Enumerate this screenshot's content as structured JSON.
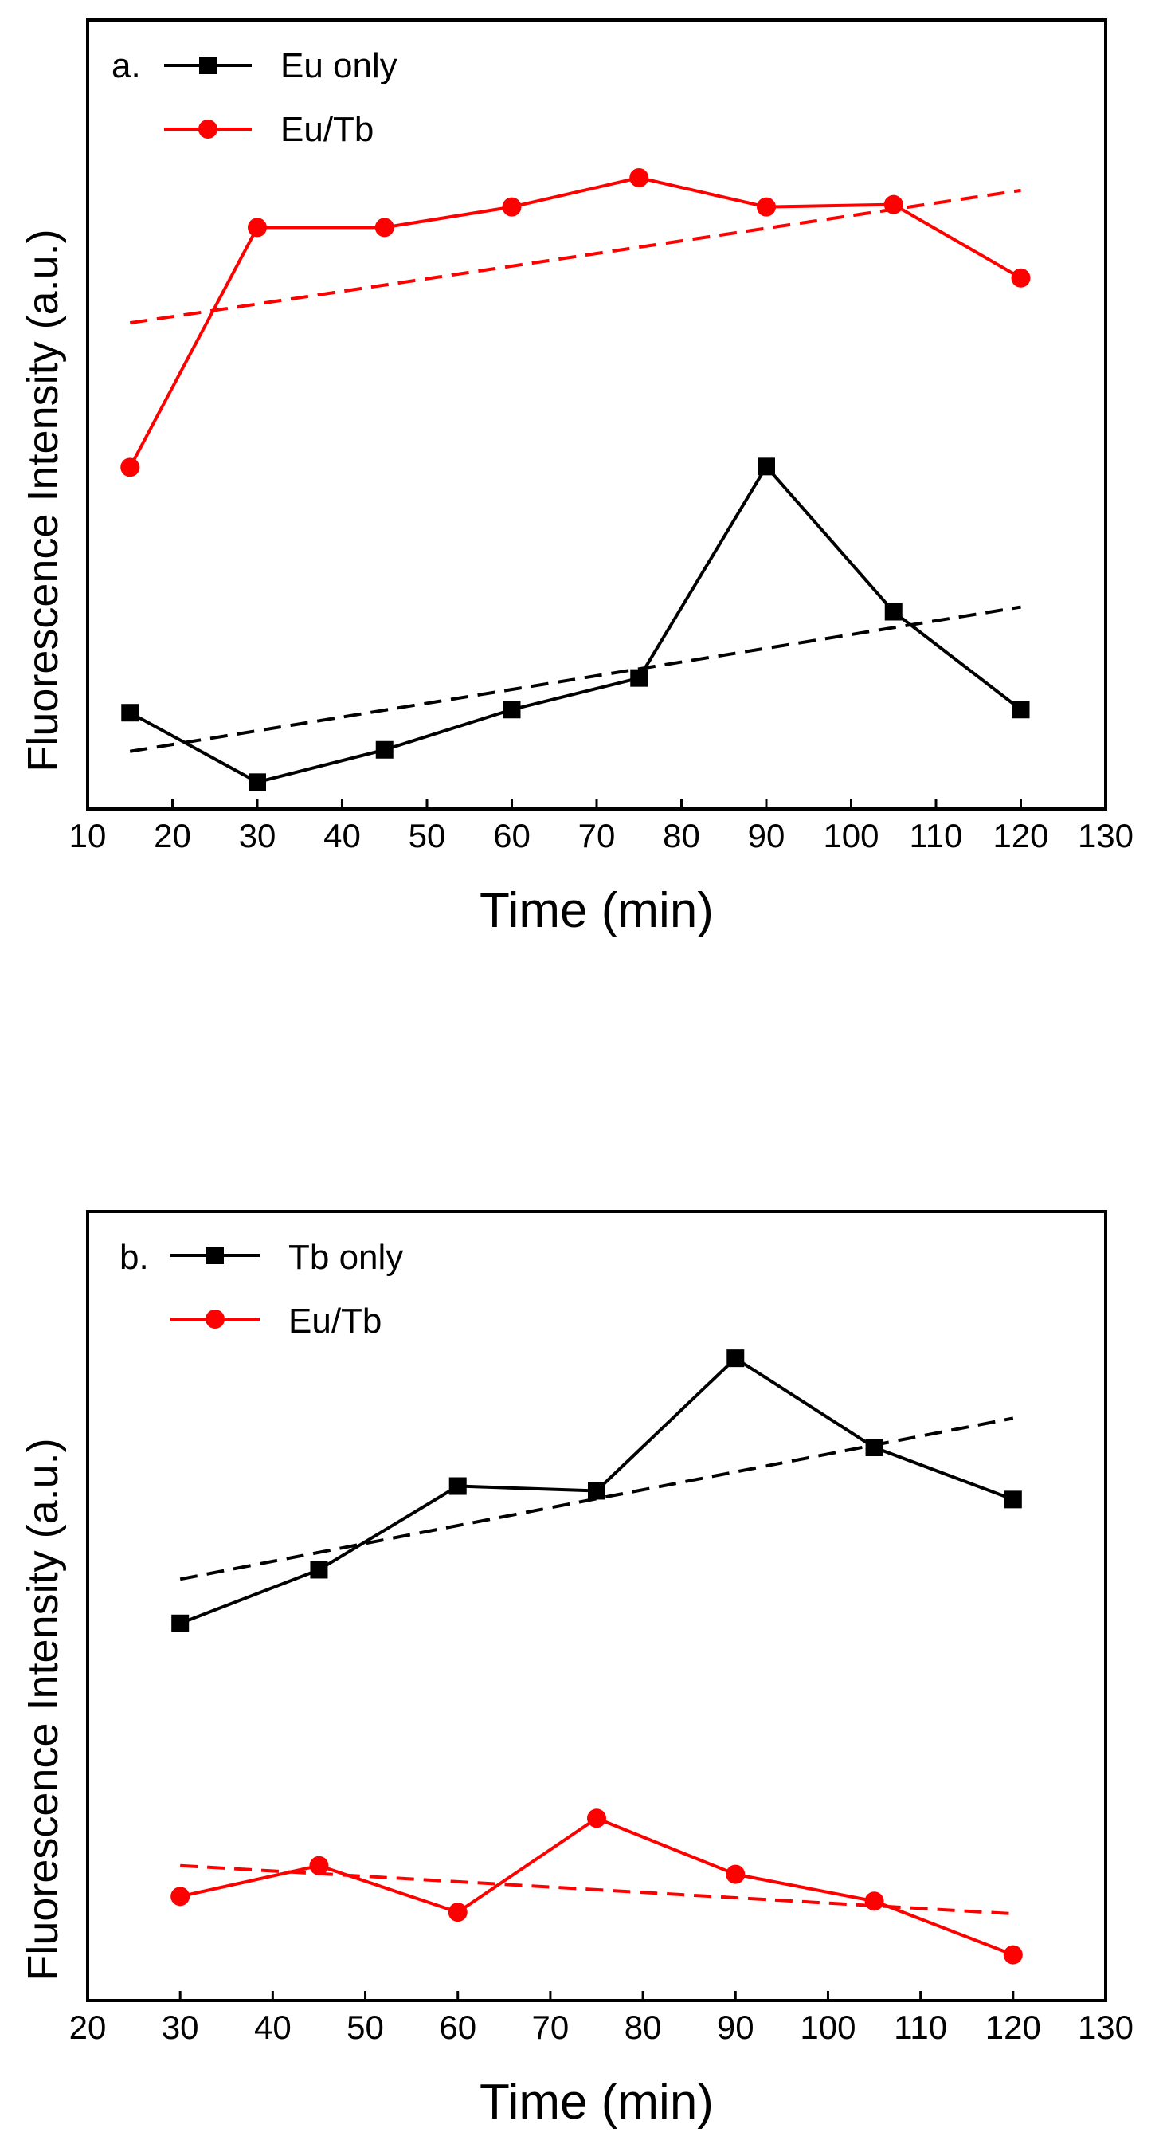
{
  "chart_data": [
    {
      "type": "line",
      "panel_label": "a.",
      "xlabel": "Time (min)",
      "ylabel": "Fluorescence Intensity (a.u.)",
      "xlim": [
        10,
        130
      ],
      "ylim": [
        0,
        100
      ],
      "x_ticks": [
        10,
        20,
        30,
        40,
        50,
        60,
        70,
        80,
        90,
        100,
        110,
        120,
        130
      ],
      "y_ticks_shown": false,
      "legend_position": "top-left",
      "series": [
        {
          "name": "Eu only",
          "color": "#000000",
          "marker": "square",
          "x": [
            15,
            30,
            45,
            60,
            75,
            90,
            105,
            120
          ],
          "y": [
            12.2,
            3.4,
            7.5,
            12.6,
            16.6,
            43.4,
            25.0,
            12.6
          ]
        },
        {
          "name": "Eu/Tb",
          "color": "#ff0000",
          "marker": "circle",
          "x": [
            15,
            30,
            45,
            60,
            75,
            90,
            105,
            120
          ],
          "y": [
            43.3,
            73.7,
            73.7,
            76.3,
            80.0,
            76.3,
            76.6,
            67.3
          ]
        }
      ],
      "trendlines": [
        {
          "series": "Eu only",
          "color": "#000000",
          "style": "dashed",
          "x": [
            15,
            120
          ],
          "y": [
            7.3,
            25.6
          ]
        },
        {
          "series": "Eu/Tb",
          "color": "#ff0000",
          "style": "dashed",
          "x": [
            15,
            120
          ],
          "y": [
            61.6,
            78.4
          ]
        }
      ]
    },
    {
      "type": "line",
      "panel_label": "b.",
      "xlabel": "Time (min)",
      "ylabel": "Fluorescence Intensity (a.u.)",
      "xlim": [
        20,
        130
      ],
      "ylim": [
        0,
        100
      ],
      "x_ticks": [
        20,
        30,
        40,
        50,
        60,
        70,
        80,
        90,
        100,
        110,
        120,
        130
      ],
      "y_ticks_shown": false,
      "legend_position": "top-left",
      "series": [
        {
          "name": "Tb only",
          "color": "#000000",
          "marker": "square",
          "x": [
            30,
            45,
            60,
            75,
            90,
            105,
            120
          ],
          "y": [
            47.8,
            54.6,
            65.2,
            64.6,
            81.4,
            70.1,
            63.5
          ]
        },
        {
          "name": "Eu/Tb",
          "color": "#ff0000",
          "marker": "circle",
          "x": [
            30,
            45,
            60,
            75,
            90,
            105,
            120
          ],
          "y": [
            13.2,
            17.1,
            11.2,
            23.1,
            16.0,
            12.6,
            5.8
          ]
        }
      ],
      "trendlines": [
        {
          "series": "Tb only",
          "color": "#000000",
          "style": "dashed",
          "x": [
            30,
            120
          ],
          "y": [
            53.4,
            73.8
          ]
        },
        {
          "series": "Eu/Tb",
          "color": "#ff0000",
          "style": "dashed",
          "x": [
            30,
            120
          ],
          "y": [
            17.1,
            11.0
          ]
        }
      ]
    }
  ]
}
